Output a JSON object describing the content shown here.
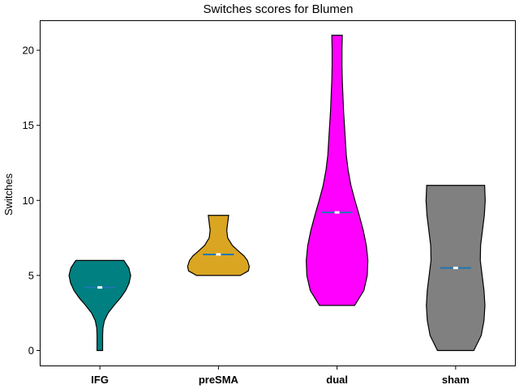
{
  "chart_data": {
    "type": "violin",
    "title": "Switches scores for Blumen",
    "xlabel": "",
    "ylabel": "Switches",
    "ylim": [
      -1,
      22
    ],
    "yticks": [
      0,
      5,
      10,
      15,
      20
    ],
    "grid": false,
    "categories": [
      "IFG",
      "preSMA",
      "dual",
      "sham"
    ],
    "series": [
      {
        "category": "IFG",
        "color": "#008080",
        "min": 0,
        "max": 6,
        "mean": 4.2,
        "profile": [
          [
            0,
            0.09
          ],
          [
            0.5,
            0.09
          ],
          [
            1,
            0.09
          ],
          [
            1.5,
            0.1
          ],
          [
            2,
            0.15
          ],
          [
            2.5,
            0.27
          ],
          [
            3,
            0.46
          ],
          [
            3.5,
            0.67
          ],
          [
            4,
            0.84
          ],
          [
            4.5,
            0.95
          ],
          [
            5,
            1.0
          ],
          [
            5.5,
            0.94
          ],
          [
            6,
            0.78
          ]
        ]
      },
      {
        "category": "preSMA",
        "color": "#DAA520",
        "min": 5,
        "max": 9,
        "mean": 6.4,
        "profile": [
          [
            5,
            0.71
          ],
          [
            5.3,
            0.97
          ],
          [
            5.6,
            1.0
          ],
          [
            6,
            0.94
          ],
          [
            6.3,
            0.83
          ],
          [
            6.6,
            0.66
          ],
          [
            7,
            0.45
          ],
          [
            7.5,
            0.3
          ],
          [
            8,
            0.27
          ],
          [
            8.5,
            0.3
          ],
          [
            9,
            0.33
          ]
        ]
      },
      {
        "category": "dual",
        "color": "#FF00FF",
        "min": 3,
        "max": 21,
        "mean": 9.2,
        "profile": [
          [
            3,
            0.57
          ],
          [
            4,
            0.87
          ],
          [
            5,
            0.98
          ],
          [
            6,
            1.0
          ],
          [
            7,
            0.95
          ],
          [
            8,
            0.85
          ],
          [
            9,
            0.72
          ],
          [
            10,
            0.58
          ],
          [
            11,
            0.45
          ],
          [
            12,
            0.36
          ],
          [
            13,
            0.3
          ],
          [
            14,
            0.27
          ],
          [
            15,
            0.24
          ],
          [
            16,
            0.21
          ],
          [
            17,
            0.19
          ],
          [
            18,
            0.17
          ],
          [
            19,
            0.16
          ],
          [
            20,
            0.16
          ],
          [
            21,
            0.17
          ]
        ]
      },
      {
        "category": "sham",
        "color": "#808080",
        "min": 0,
        "max": 11,
        "mean": 5.5,
        "profile": [
          [
            0,
            0.59
          ],
          [
            1,
            0.83
          ],
          [
            2,
            0.92
          ],
          [
            3,
            0.95
          ],
          [
            4,
            0.92
          ],
          [
            5,
            0.86
          ],
          [
            6,
            0.8
          ],
          [
            7,
            0.81
          ],
          [
            8,
            0.87
          ],
          [
            9,
            0.93
          ],
          [
            10,
            0.96
          ],
          [
            11,
            0.94
          ]
        ]
      }
    ]
  }
}
